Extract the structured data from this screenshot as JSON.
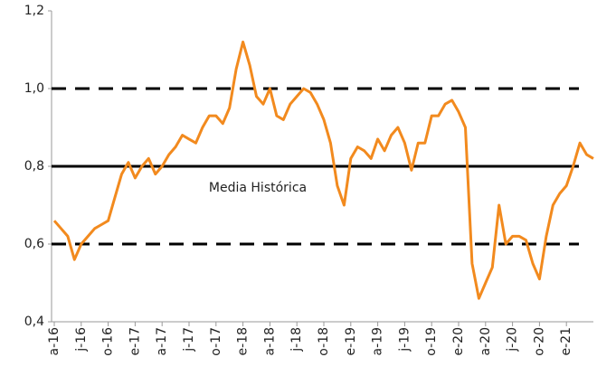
{
  "chart_data": {
    "type": "line",
    "categories": [
      "a-16",
      null,
      null,
      null,
      "j-16",
      null,
      null,
      null,
      "o-16",
      null,
      null,
      null,
      "e-17",
      null,
      null,
      null,
      "a-17",
      null,
      null,
      null,
      "j-17",
      null,
      null,
      null,
      "o-17",
      null,
      null,
      null,
      "e-18",
      null,
      null,
      null,
      "a-18",
      null,
      null,
      null,
      "j-18",
      null,
      null,
      null,
      "o-18",
      null,
      null,
      null,
      "e-19",
      null,
      null,
      null,
      "a-19",
      null,
      null,
      null,
      "j-19",
      null,
      null,
      null,
      "o-19",
      null,
      null,
      null,
      "e-20",
      null,
      null,
      null,
      "a-20",
      null,
      null,
      null,
      "j-20",
      null,
      null,
      null,
      "o-20",
      null,
      null,
      null,
      "e-21",
      null,
      null,
      null,
      null
    ],
    "series": [
      {
        "color": "#f28a1e",
        "values": [
          0.66,
          0.64,
          0.62,
          0.56,
          0.6,
          0.62,
          0.64,
          0.65,
          0.66,
          0.72,
          0.78,
          0.81,
          0.77,
          0.8,
          0.82,
          0.78,
          0.8,
          0.83,
          0.85,
          0.88,
          0.87,
          0.86,
          0.9,
          0.93,
          0.93,
          0.91,
          0.95,
          1.05,
          1.12,
          1.06,
          0.98,
          0.96,
          1.0,
          0.93,
          0.92,
          0.96,
          0.98,
          1.0,
          0.99,
          0.96,
          0.92,
          0.86,
          0.75,
          0.7,
          0.82,
          0.85,
          0.84,
          0.82,
          0.87,
          0.84,
          0.88,
          0.9,
          0.86,
          0.79,
          0.86,
          0.86,
          0.93,
          0.93,
          0.96,
          0.97,
          0.94,
          0.9,
          0.55,
          0.46,
          0.5,
          0.54,
          0.7,
          0.6,
          0.62,
          0.62,
          0.61,
          0.55,
          0.51,
          0.62,
          0.7,
          0.73,
          0.75,
          0.8,
          0.86,
          0.83,
          0.82
        ]
      }
    ],
    "ylim": [
      0.4,
      1.2
    ],
    "yticks": [
      {
        "value": 0.4,
        "label": "0,4"
      },
      {
        "value": 0.6,
        "label": "0,6"
      },
      {
        "value": 0.8,
        "label": "0,8"
      },
      {
        "value": 1.0,
        "label": "1,0"
      },
      {
        "value": 1.2,
        "label": "1,2"
      }
    ],
    "reference_lines": [
      {
        "value": 1.0,
        "style": "dashed"
      },
      {
        "value": 0.8,
        "style": "solid",
        "label": "Media Histórica"
      },
      {
        "value": 0.6,
        "style": "dashed"
      }
    ]
  }
}
